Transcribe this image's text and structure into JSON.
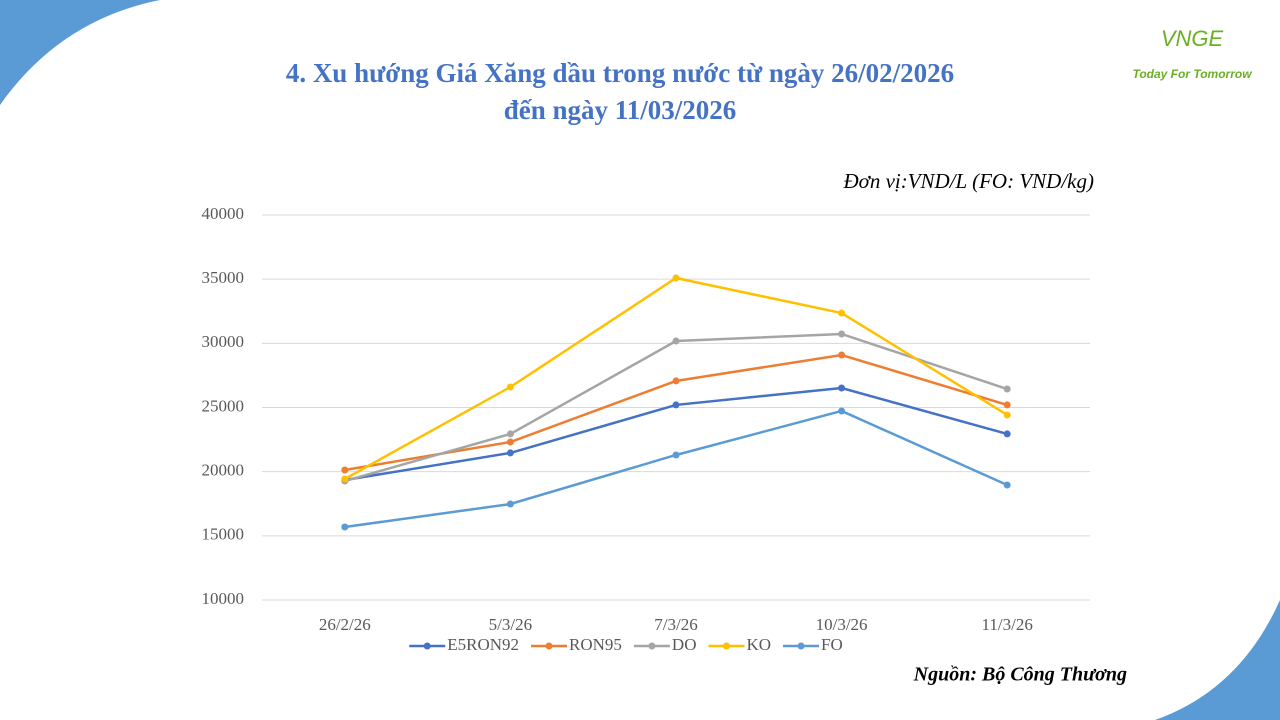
{
  "logo": {
    "mark": "VNGE",
    "tagline": "Today For Tomorrow"
  },
  "chart_data": {
    "type": "line",
    "title": [
      "4. Xu hướng Giá Xăng dầu trong nước từ ngày 26/02/2026",
      "đến ngày 11/03/2026"
    ],
    "unit": "Đơn vị:VND/L (FO: VND/kg)",
    "source": "Nguồn: Bộ Công Thương",
    "categories": [
      "26/2/26",
      "5/3/26",
      "7/3/26",
      "10/3/26",
      "11/3/26"
    ],
    "series": [
      {
        "name": "E5RON92",
        "color": "#4472c4",
        "values": [
          19350,
          21460,
          25200,
          26520,
          22940
        ]
      },
      {
        "name": "RON95",
        "color": "#ed7d31",
        "values": [
          20130,
          22310,
          27070,
          29090,
          25200
        ]
      },
      {
        "name": "DO",
        "color": "#a5a5a5",
        "values": [
          19270,
          22940,
          30180,
          30730,
          26440
        ]
      },
      {
        "name": "KO",
        "color": "#ffc000",
        "values": [
          19430,
          26600,
          35090,
          32360,
          24420
        ]
      },
      {
        "name": "FO",
        "color": "#5b9bd5",
        "values": [
          15690,
          17480,
          21300,
          24730,
          18960
        ]
      }
    ],
    "ylim": [
      10000,
      40000
    ],
    "yticks": [
      10000,
      15000,
      20000,
      25000,
      30000,
      35000,
      40000
    ],
    "grid": true,
    "legend": "bottom"
  }
}
